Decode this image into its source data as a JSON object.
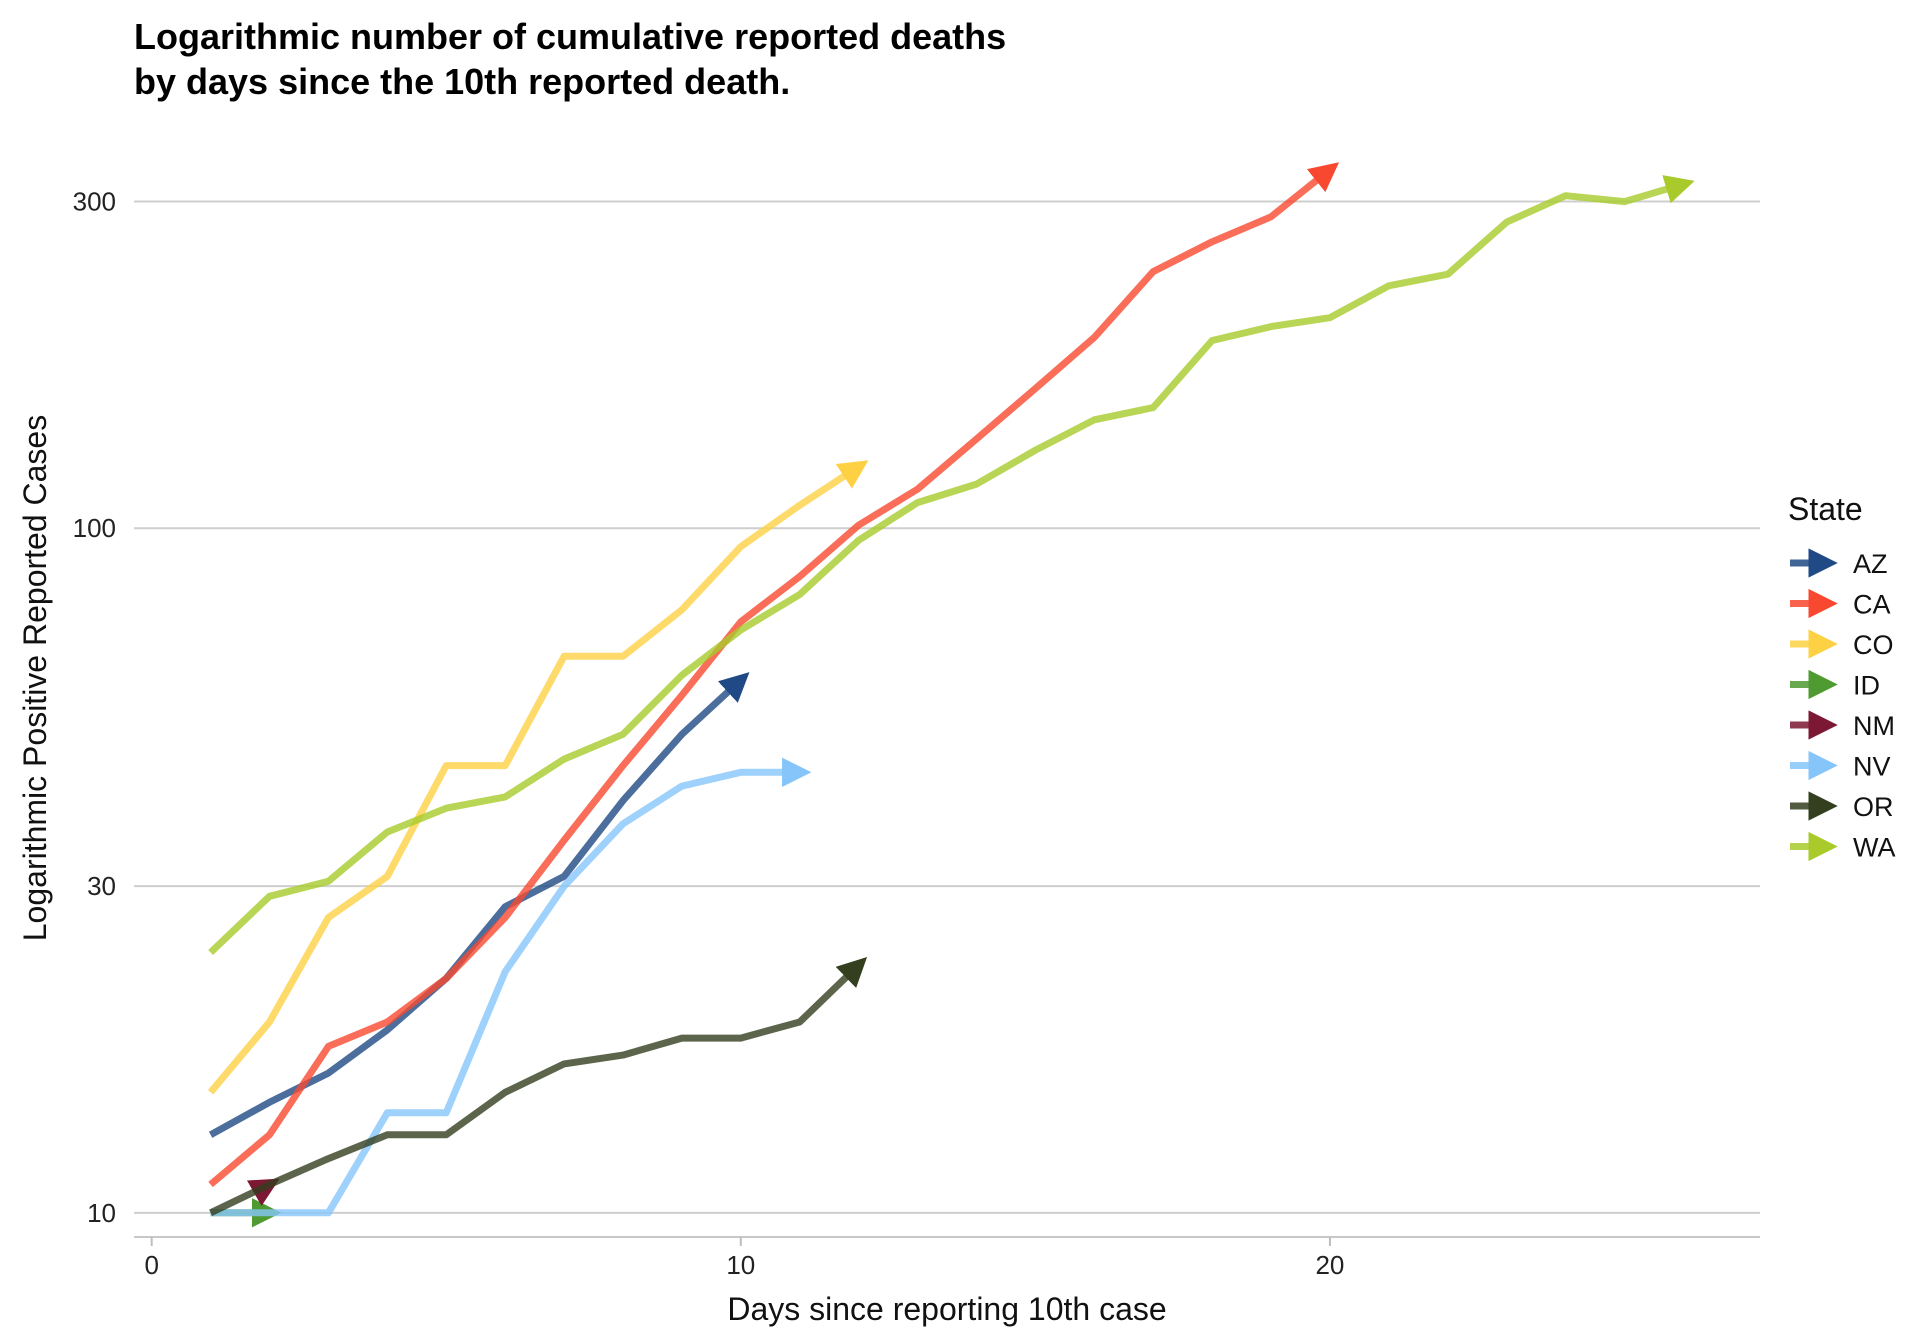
{
  "chart_data": {
    "type": "line",
    "title_lines": [
      "Logarithmic number of cumulative reported deaths",
      "by days since the 10th reported death."
    ],
    "xlabel": "Days since reporting 10th case",
    "ylabel": "Logarithmic Positive Reported Cases",
    "y_scale": "log10",
    "xlim": [
      -0.3,
      27.3
    ],
    "ylim": [
      9.25,
      345
    ],
    "x_ticks": [
      0,
      10,
      20
    ],
    "y_ticks": [
      10,
      30,
      100,
      300
    ],
    "grid": "horizontal-major",
    "legend_title": "State",
    "legend_position": "right",
    "series_end_marker": "arrow",
    "series": [
      {
        "name": "AZ",
        "color": "#1f4a85",
        "x": [
          1,
          2,
          3,
          4,
          5,
          6,
          7,
          8,
          9,
          10
        ],
        "y": [
          13,
          14.5,
          16,
          18.5,
          22,
          28,
          31,
          40,
          50,
          60
        ]
      },
      {
        "name": "CA",
        "color": "#f8482f",
        "x": [
          1,
          2,
          3,
          4,
          5,
          6,
          7,
          8,
          9,
          10,
          11,
          12,
          13,
          14,
          15,
          16,
          17,
          18,
          19,
          20
        ],
        "y": [
          11,
          13,
          17.5,
          19,
          22,
          27,
          35,
          45,
          57,
          73,
          85,
          101,
          114,
          135,
          160,
          190,
          237,
          262,
          285,
          334
        ]
      },
      {
        "name": "CO",
        "color": "#fdd143",
        "x": [
          1,
          2,
          3,
          4,
          5,
          6,
          7,
          8,
          9,
          10,
          11,
          12
        ],
        "y": [
          15,
          19,
          27,
          31,
          45,
          45,
          65,
          65,
          76,
          94,
          108,
          123
        ]
      },
      {
        "name": "ID",
        "color": "#4f9a31",
        "x": [
          1,
          2
        ],
        "y": [
          10,
          10
        ]
      },
      {
        "name": "NM",
        "color": "#7c1833",
        "x": [
          2
        ],
        "y": [
          11
        ]
      },
      {
        "name": "NV",
        "color": "#86c5fa",
        "x": [
          1,
          2,
          3,
          4,
          5,
          6,
          7,
          8,
          9,
          10,
          11
        ],
        "y": [
          10,
          10,
          10,
          14,
          14,
          22.5,
          30,
          37,
          42,
          44,
          44
        ]
      },
      {
        "name": "OR",
        "color": "#333f1e",
        "x": [
          1,
          2,
          3,
          4,
          5,
          6,
          7,
          8,
          9,
          10,
          11,
          12
        ],
        "y": [
          10,
          11,
          12,
          13,
          13,
          15,
          16.5,
          17,
          18,
          18,
          19,
          23
        ]
      },
      {
        "name": "WA",
        "color": "#a8ca2b",
        "x": [
          1,
          2,
          3,
          4,
          5,
          6,
          7,
          8,
          9,
          10,
          11,
          12,
          13,
          14,
          15,
          16,
          17,
          18,
          19,
          20,
          21,
          22,
          23,
          24,
          25,
          26
        ],
        "y": [
          24,
          29,
          30.5,
          36,
          39,
          40.5,
          46,
          50,
          61,
          71,
          80,
          96,
          109,
          116,
          130,
          144,
          150,
          188,
          197,
          203,
          226,
          235,
          280,
          306,
          300,
          318
        ]
      }
    ]
  }
}
